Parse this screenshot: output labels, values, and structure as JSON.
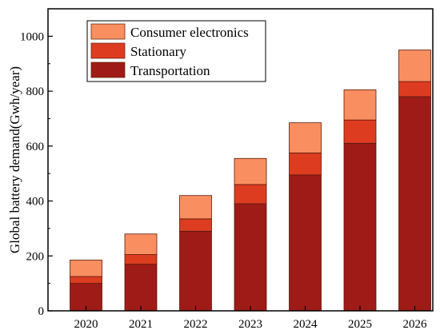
{
  "chart_data": {
    "type": "bar",
    "stacked": true,
    "ylabel": "Global battery demand(Gwh/year)",
    "xlabel": "",
    "ylim": [
      0,
      1100
    ],
    "yticks": [
      "0",
      "200",
      "400",
      "600",
      "800",
      "1000"
    ],
    "categories": [
      "2020",
      "2021",
      "2022",
      "2023",
      "2024",
      "2025",
      "2026"
    ],
    "series": [
      {
        "name": "Transportation",
        "color": "#9e1b17",
        "values": [
          100,
          170,
          290,
          390,
          495,
          610,
          780
        ]
      },
      {
        "name": "Stationary",
        "color": "#dd3c20",
        "values": [
          25,
          35,
          45,
          70,
          80,
          85,
          55
        ]
      },
      {
        "name": "Consumer electronics",
        "color": "#f98f60",
        "values": [
          60,
          75,
          85,
          95,
          110,
          110,
          115
        ]
      }
    ],
    "legend": {
      "placement": "top-left",
      "entries": [
        "Consumer electronics",
        "Stationary",
        "Transportation"
      ]
    },
    "grid": false
  }
}
